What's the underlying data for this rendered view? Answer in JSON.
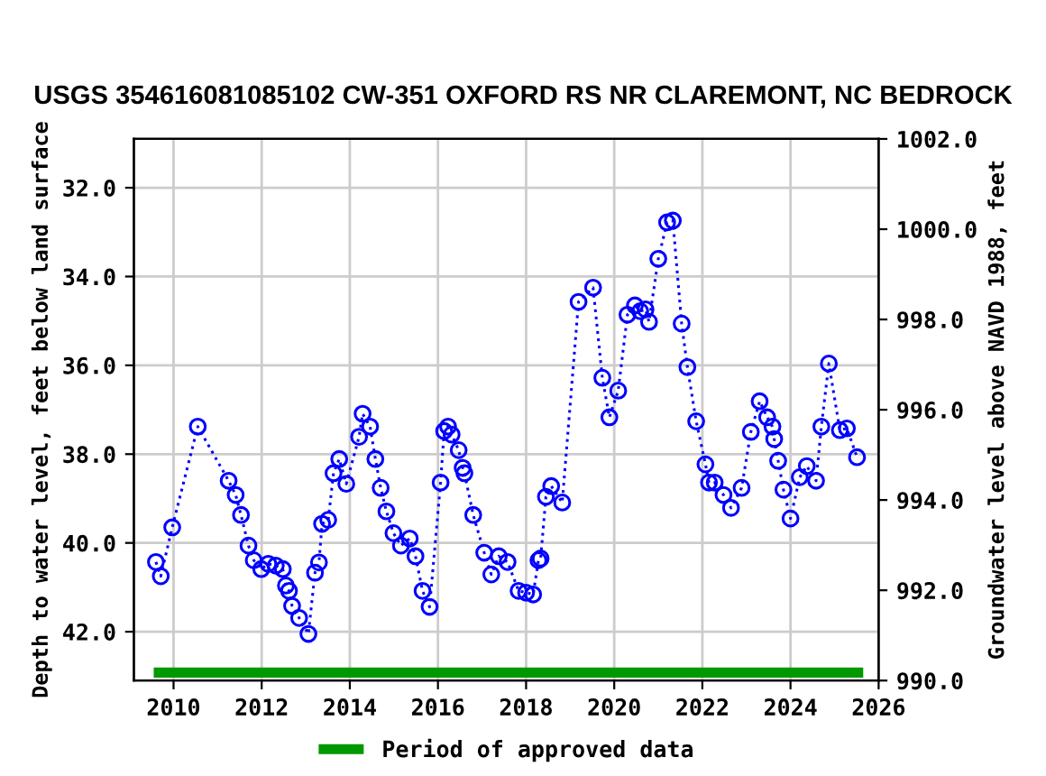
{
  "chart_data": {
    "type": "line",
    "title": "USGS 354616081085102 CW-351 OXFORD RS NR CLAREMONT, NC BEDROCK",
    "ylabel": "Depth to water level, feet below land surface",
    "y2label": "Groundwater level above NAVD 1988, feet",
    "xlim": [
      2009.1,
      2026
    ],
    "xticks": [
      2010,
      2012,
      2014,
      2016,
      2018,
      2020,
      2022,
      2024,
      2026
    ],
    "ylim": [
      43.1,
      30.9
    ],
    "yticks": [
      {
        "value": 32,
        "label": "32.0"
      },
      {
        "value": 34,
        "label": "34.0"
      },
      {
        "value": 36,
        "label": "36.0"
      },
      {
        "value": 38,
        "label": "38.0"
      },
      {
        "value": 40,
        "label": "40.0"
      },
      {
        "value": 42,
        "label": "42.0"
      }
    ],
    "y2lim": [
      990,
      1002
    ],
    "y2ticks": [
      {
        "value": 990,
        "label": "990.0"
      },
      {
        "value": 992,
        "label": "992.0"
      },
      {
        "value": 994,
        "label": "994.0"
      },
      {
        "value": 996,
        "label": "996.0"
      },
      {
        "value": 998,
        "label": "998.0"
      },
      {
        "value": 1000,
        "label": "1000.0"
      },
      {
        "value": 1002,
        "label": "1002.0"
      }
    ],
    "grid": true,
    "legend": "bottom",
    "marker": "circle",
    "line_style": "dotted",
    "series": [
      {
        "name": "Period of approved data",
        "type": "line",
        "color": "#009900",
        "marker": "none",
        "line_style": "solid",
        "x": [
          2009.55,
          2025.65
        ],
        "values": [
          42.92,
          42.92
        ]
      },
      {
        "color": "#0000ff",
        "x": [
          2009.6,
          2009.71,
          2009.97,
          2010.55,
          2011.25,
          2011.41,
          2011.53,
          2011.7,
          2011.82,
          2011.99,
          2012.15,
          2012.32,
          2012.48,
          2012.55,
          2012.62,
          2012.69,
          2012.85,
          2013.06,
          2013.21,
          2013.3,
          2013.37,
          2013.51,
          2013.63,
          2013.76,
          2013.92,
          2014.21,
          2014.29,
          2014.46,
          2014.58,
          2014.7,
          2014.83,
          2014.99,
          2015.16,
          2015.36,
          2015.49,
          2015.65,
          2015.81,
          2016.06,
          2016.14,
          2016.23,
          2016.31,
          2016.47,
          2016.56,
          2016.6,
          2016.8,
          2017.05,
          2017.21,
          2017.38,
          2017.58,
          2017.83,
          2018.0,
          2018.16,
          2018.28,
          2018.33,
          2018.45,
          2018.57,
          2018.82,
          2019.19,
          2019.52,
          2019.73,
          2019.89,
          2020.09,
          2020.3,
          2020.47,
          2020.59,
          2020.71,
          2020.79,
          2021.0,
          2021.2,
          2021.33,
          2021.53,
          2021.66,
          2021.86,
          2022.07,
          2022.15,
          2022.28,
          2022.48,
          2022.65,
          2022.89,
          2023.1,
          2023.3,
          2023.47,
          2023.59,
          2023.63,
          2023.72,
          2023.84,
          2024.0,
          2024.21,
          2024.37,
          2024.58,
          2024.7,
          2024.87,
          2025.12,
          2025.28,
          2025.51
        ],
        "values": [
          40.43,
          40.75,
          39.65,
          37.38,
          38.6,
          38.92,
          39.37,
          40.06,
          40.39,
          40.59,
          40.47,
          40.51,
          40.59,
          40.96,
          41.08,
          41.42,
          41.69,
          42.05,
          40.67,
          40.44,
          39.57,
          39.48,
          38.43,
          38.11,
          38.67,
          37.61,
          37.09,
          37.38,
          38.11,
          38.76,
          39.29,
          39.78,
          40.06,
          39.9,
          40.3,
          41.08,
          41.44,
          38.64,
          37.48,
          37.38,
          37.56,
          37.91,
          38.31,
          38.43,
          39.37,
          40.22,
          40.71,
          40.3,
          40.43,
          41.08,
          41.12,
          41.16,
          40.39,
          40.35,
          38.96,
          38.72,
          39.09,
          34.57,
          34.25,
          36.28,
          37.17,
          36.57,
          34.86,
          34.65,
          34.78,
          34.74,
          35.02,
          33.6,
          32.78,
          32.74,
          35.06,
          36.04,
          37.26,
          38.23,
          38.64,
          38.64,
          38.92,
          39.21,
          38.76,
          37.5,
          36.81,
          37.17,
          37.38,
          37.66,
          38.15,
          38.8,
          39.45,
          38.52,
          38.27,
          38.6,
          37.38,
          35.96,
          37.46,
          37.42,
          38.07
        ]
      }
    ]
  }
}
